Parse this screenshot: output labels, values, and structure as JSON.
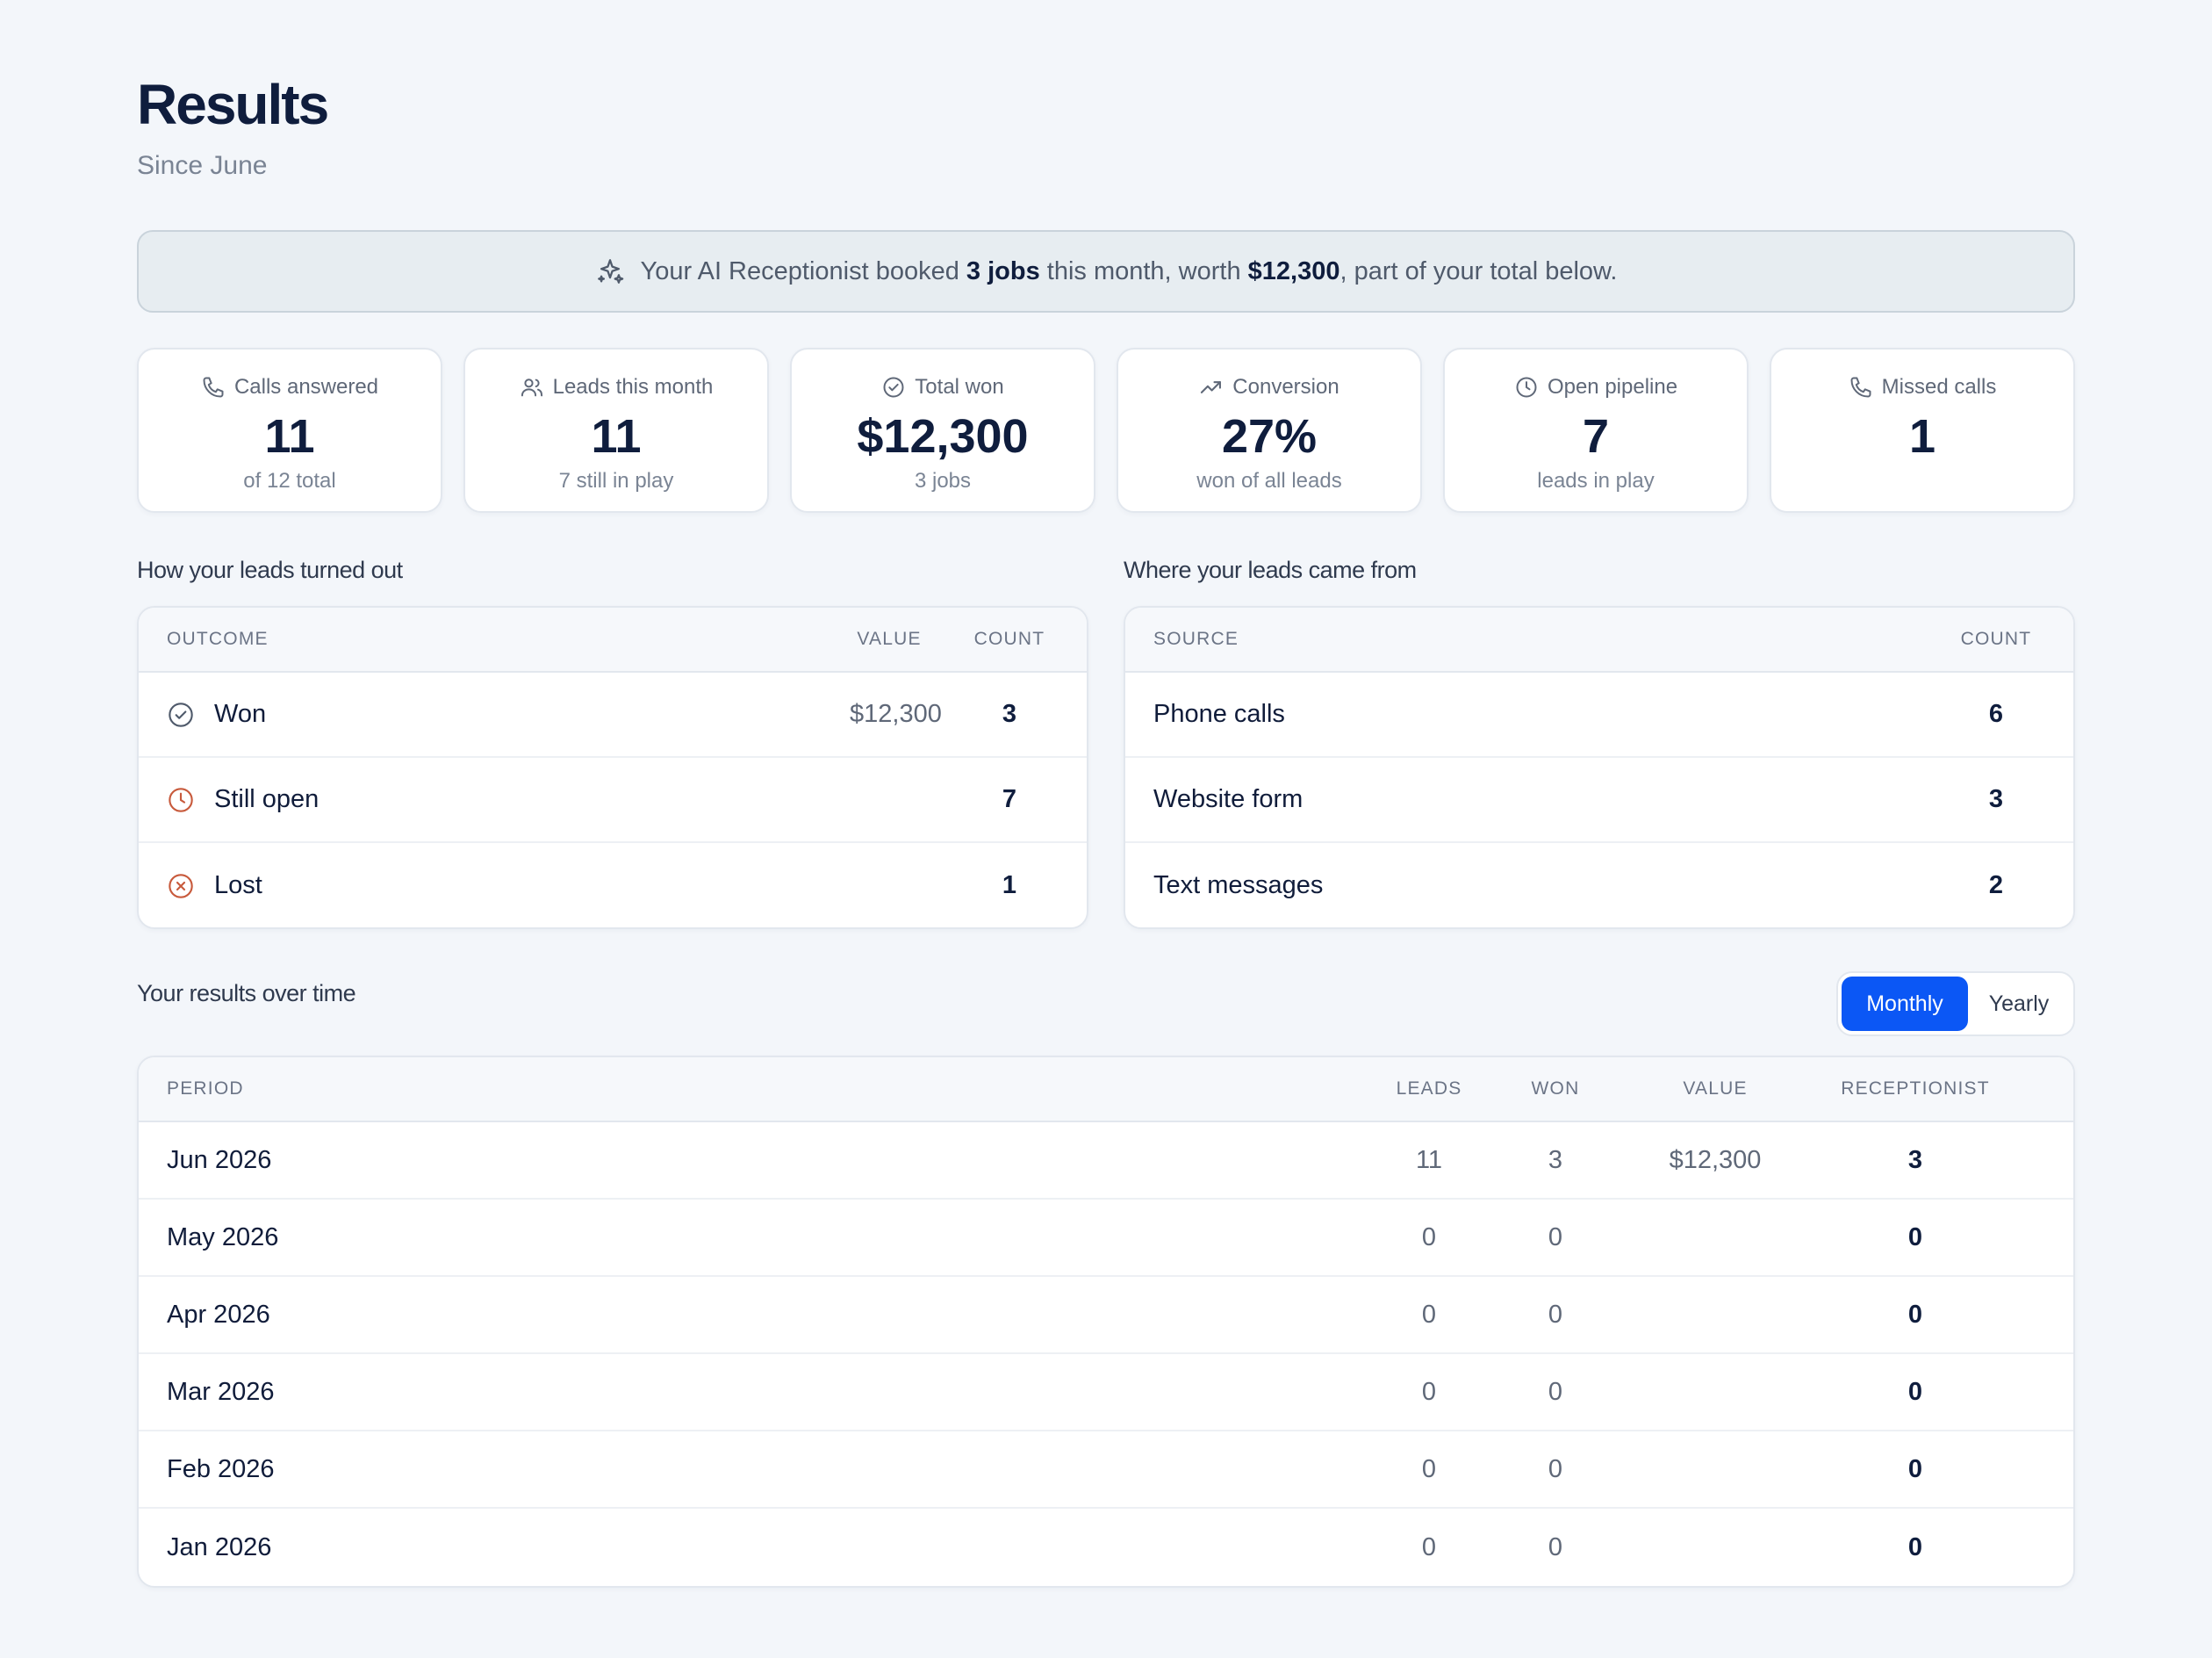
{
  "header": {
    "title": "Results",
    "subtitle": "Since June"
  },
  "banner": {
    "icon": "sparkle-icon",
    "prefix": "Your AI Receptionist booked ",
    "jobs": "3 jobs",
    "middle": " this month, worth ",
    "amount": "$12,300",
    "suffix": ", part of your total below."
  },
  "stats": [
    {
      "icon": "phone-icon",
      "label": "Calls answered",
      "value": "11",
      "sub": "of 12 total"
    },
    {
      "icon": "users-icon",
      "label": "Leads this month",
      "value": "11",
      "sub": "7 still in play"
    },
    {
      "icon": "check-circle-icon",
      "label": "Total won",
      "value": "$12,300",
      "sub": "3 jobs"
    },
    {
      "icon": "trending-up-icon",
      "label": "Conversion",
      "value": "27%",
      "sub": "won of all leads"
    },
    {
      "icon": "clock-icon",
      "label": "Open pipeline",
      "value": "7",
      "sub": "leads in play"
    },
    {
      "icon": "phone-icon",
      "label": "Missed calls",
      "value": "1",
      "sub": ""
    }
  ],
  "outcomes": {
    "title": "How your leads turned out",
    "headers": {
      "outcome": "OUTCOME",
      "value": "VALUE",
      "count": "COUNT"
    },
    "rows": [
      {
        "icon": "check-circle-icon",
        "label": "Won",
        "value": "$12,300",
        "count": "3"
      },
      {
        "icon": "clock-icon",
        "label": "Still open",
        "value": "",
        "count": "7"
      },
      {
        "icon": "x-circle-icon",
        "label": "Lost",
        "value": "",
        "count": "1"
      }
    ]
  },
  "sources": {
    "title": "Where your leads came from",
    "headers": {
      "source": "SOURCE",
      "count": "COUNT"
    },
    "rows": [
      {
        "label": "Phone calls",
        "count": "6"
      },
      {
        "label": "Website form",
        "count": "3"
      },
      {
        "label": "Text messages",
        "count": "2"
      }
    ]
  },
  "timeline": {
    "title": "Your results over time",
    "toggle": {
      "monthly": "Monthly",
      "yearly": "Yearly",
      "selected": "Monthly"
    },
    "headers": {
      "period": "PERIOD",
      "leads": "LEADS",
      "won": "WON",
      "value": "VALUE",
      "receptionist": "RECEPTIONIST"
    },
    "rows": [
      {
        "period": "Jun 2026",
        "leads": "11",
        "won": "3",
        "value": "$12,300",
        "receptionist": "3"
      },
      {
        "period": "May 2026",
        "leads": "0",
        "won": "0",
        "value": "",
        "receptionist": "0"
      },
      {
        "period": "Apr 2026",
        "leads": "0",
        "won": "0",
        "value": "",
        "receptionist": "0"
      },
      {
        "period": "Mar 2026",
        "leads": "0",
        "won": "0",
        "value": "",
        "receptionist": "0"
      },
      {
        "period": "Feb 2026",
        "leads": "0",
        "won": "0",
        "value": "",
        "receptionist": "0"
      },
      {
        "period": "Jan 2026",
        "leads": "0",
        "won": "0",
        "value": "",
        "receptionist": "0"
      }
    ]
  },
  "colors": {
    "accent": "#0b57f5",
    "heading": "#0f1d3d",
    "warning": "#c85a3c",
    "background": "#f3f6fa"
  }
}
